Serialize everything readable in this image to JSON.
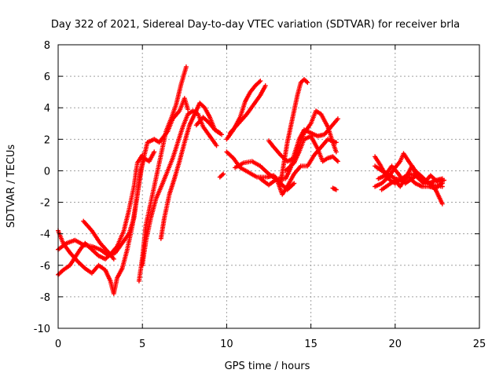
{
  "chart_data": {
    "type": "scatter",
    "title": "Day 322 of 2021, Sidereal Day-to-day VTEC variation (SDTVAR) for receiver brla",
    "xlabel": "GPS time / hours",
    "ylabel": "SDTVAR / TECUs",
    "xlim": [
      0,
      25
    ],
    "ylim": [
      -10,
      8
    ],
    "xticks": [
      0,
      5,
      10,
      15,
      20,
      25
    ],
    "yticks": [
      -10,
      -8,
      -6,
      -4,
      -2,
      0,
      2,
      4,
      6,
      8
    ],
    "grid": true,
    "legend": "none",
    "marker": "plus",
    "colors": {
      "series": "#ff0000",
      "grid": "#a0a0a0",
      "axis": "#000000"
    },
    "series": [
      {
        "points": [
          [
            0,
            -5.0
          ],
          [
            0.5,
            -4.6
          ],
          [
            1.0,
            -4.4
          ],
          [
            1.5,
            -4.7
          ],
          [
            2.0,
            -4.8
          ],
          [
            2.5,
            -5.0
          ],
          [
            3.0,
            -5.4
          ],
          [
            3.4,
            -5.2
          ],
          [
            3.8,
            -4.6
          ],
          [
            4.2,
            -4.0
          ],
          [
            4.5,
            -3.0
          ],
          [
            4.7,
            -1.5
          ],
          [
            4.9,
            0.0
          ],
          [
            5.1,
            0.8
          ],
          [
            5.4,
            0.6
          ],
          [
            5.7,
            1.2
          ]
        ]
      },
      {
        "points": [
          [
            0,
            -3.8
          ],
          [
            0.3,
            -4.6
          ],
          [
            0.7,
            -5.2
          ],
          [
            1.2,
            -5.8
          ],
          [
            1.6,
            -6.2
          ],
          [
            2.0,
            -6.5
          ],
          [
            2.4,
            -6.0
          ],
          [
            2.8,
            -6.3
          ],
          [
            3.1,
            -7.0
          ],
          [
            3.3,
            -7.8
          ],
          [
            3.5,
            -6.8
          ],
          [
            3.8,
            -6.2
          ],
          [
            4.1,
            -5.0
          ],
          [
            4.4,
            -3.5
          ],
          [
            4.7,
            -1.5
          ],
          [
            5.0,
            0.5
          ],
          [
            5.3,
            1.8
          ],
          [
            5.7,
            2.0
          ],
          [
            6.0,
            1.8
          ],
          [
            6.5,
            2.5
          ],
          [
            6.8,
            3.3
          ],
          [
            7.2,
            3.8
          ],
          [
            7.5,
            4.6
          ],
          [
            7.7,
            3.9
          ]
        ]
      },
      {
        "points": [
          [
            0,
            -6.6
          ],
          [
            0.3,
            -6.3
          ],
          [
            0.7,
            -6.0
          ],
          [
            1.0,
            -5.5
          ],
          [
            1.3,
            -5.0
          ],
          [
            1.6,
            -4.6
          ],
          [
            2.0,
            -5.0
          ],
          [
            2.4,
            -5.4
          ],
          [
            2.8,
            -5.6
          ],
          [
            3.1,
            -5.3
          ],
          [
            3.5,
            -4.8
          ],
          [
            3.9,
            -3.8
          ],
          [
            4.2,
            -2.5
          ],
          [
            4.5,
            -1.0
          ],
          [
            4.7,
            0.5
          ],
          [
            5.0,
            1.0
          ]
        ]
      },
      {
        "points": [
          [
            1.5,
            -3.2
          ],
          [
            2.0,
            -3.8
          ],
          [
            2.5,
            -4.6
          ],
          [
            3.0,
            -5.2
          ],
          [
            3.3,
            -5.6
          ]
        ]
      },
      {
        "points": [
          [
            4.8,
            -7.0
          ],
          [
            5.0,
            -5.5
          ],
          [
            5.2,
            -3.5
          ],
          [
            5.5,
            -2.0
          ],
          [
            5.8,
            -0.5
          ],
          [
            6.1,
            1.0
          ],
          [
            6.4,
            2.5
          ],
          [
            6.7,
            3.3
          ],
          [
            7.0,
            4.2
          ],
          [
            7.3,
            5.5
          ],
          [
            7.6,
            6.6
          ]
        ]
      },
      {
        "points": [
          [
            5.0,
            -6.0
          ],
          [
            5.2,
            -4.5
          ],
          [
            5.5,
            -3.0
          ],
          [
            5.8,
            -1.8
          ],
          [
            6.2,
            -0.8
          ],
          [
            6.5,
            0.0
          ],
          [
            6.8,
            0.8
          ],
          [
            7.1,
            1.8
          ],
          [
            7.4,
            2.8
          ],
          [
            7.7,
            3.6
          ],
          [
            8.0,
            3.8
          ],
          [
            8.3,
            3.6
          ],
          [
            8.6,
            2.8
          ],
          [
            9.0,
            2.2
          ],
          [
            9.4,
            1.6
          ]
        ]
      },
      {
        "points": [
          [
            6.1,
            -4.3
          ],
          [
            6.3,
            -3.0
          ],
          [
            6.6,
            -1.5
          ],
          [
            6.9,
            -0.5
          ],
          [
            7.2,
            0.6
          ],
          [
            7.5,
            1.8
          ],
          [
            7.8,
            2.9
          ],
          [
            8.1,
            3.6
          ],
          [
            8.4,
            4.3
          ],
          [
            8.7,
            4.0
          ],
          [
            9.0,
            3.4
          ],
          [
            9.3,
            2.6
          ],
          [
            9.6,
            2.4
          ]
        ]
      },
      {
        "points": [
          [
            8.2,
            2.9
          ],
          [
            8.6,
            3.4
          ],
          [
            9.0,
            3.0
          ],
          [
            9.3,
            2.6
          ],
          [
            9.7,
            2.3
          ]
        ]
      },
      {
        "points": [
          [
            9.6,
            -0.4
          ],
          [
            9.8,
            -0.2
          ]
        ]
      },
      {
        "points": [
          [
            10.0,
            2.0
          ],
          [
            10.4,
            2.6
          ],
          [
            10.8,
            3.4
          ],
          [
            11.1,
            4.4
          ],
          [
            11.4,
            5.0
          ],
          [
            11.7,
            5.4
          ],
          [
            12.0,
            5.7
          ]
        ]
      },
      {
        "points": [
          [
            10.0,
            1.2
          ],
          [
            10.4,
            0.8
          ],
          [
            10.8,
            0.2
          ],
          [
            11.3,
            -0.1
          ],
          [
            11.8,
            -0.4
          ],
          [
            12.4,
            -0.4
          ],
          [
            12.8,
            -0.3
          ],
          [
            13.2,
            -0.8
          ],
          [
            13.6,
            -1.2
          ],
          [
            14.0,
            -0.8
          ]
        ]
      },
      {
        "points": [
          [
            10.2,
            2.4
          ],
          [
            10.7,
            3.0
          ],
          [
            11.2,
            3.6
          ],
          [
            11.6,
            4.2
          ],
          [
            12.0,
            4.8
          ],
          [
            12.3,
            5.4
          ]
        ]
      },
      {
        "points": [
          [
            10.5,
            0.2
          ],
          [
            11.0,
            0.5
          ],
          [
            11.5,
            0.6
          ],
          [
            12.0,
            0.3
          ],
          [
            12.5,
            -0.2
          ],
          [
            13.0,
            -0.6
          ],
          [
            13.3,
            -1.5
          ],
          [
            13.6,
            -1.0
          ],
          [
            14.0,
            -0.2
          ],
          [
            14.4,
            0.3
          ],
          [
            14.8,
            0.3
          ],
          [
            15.2,
            1.0
          ],
          [
            15.6,
            1.5
          ],
          [
            16.0,
            2.0
          ],
          [
            16.5,
            1.8
          ]
        ]
      },
      {
        "points": [
          [
            12.5,
            1.9
          ],
          [
            12.8,
            1.5
          ],
          [
            13.2,
            1.0
          ],
          [
            13.6,
            0.6
          ],
          [
            14.0,
            0.8
          ],
          [
            14.3,
            1.6
          ],
          [
            14.6,
            2.4
          ],
          [
            15.0,
            3.0
          ],
          [
            15.3,
            3.8
          ],
          [
            15.6,
            3.6
          ],
          [
            16.0,
            2.8
          ],
          [
            16.3,
            1.8
          ],
          [
            16.5,
            1.2
          ]
        ]
      },
      {
        "points": [
          [
            12.0,
            -0.5
          ],
          [
            12.5,
            -0.9
          ],
          [
            13.0,
            -0.5
          ],
          [
            13.5,
            -0.5
          ],
          [
            13.8,
            0.2
          ],
          [
            14.0,
            1.0
          ],
          [
            14.3,
            2.0
          ],
          [
            14.6,
            2.6
          ],
          [
            15.0,
            2.4
          ],
          [
            15.4,
            2.2
          ],
          [
            15.8,
            2.3
          ],
          [
            16.2,
            2.8
          ],
          [
            16.6,
            3.3
          ]
        ]
      },
      {
        "points": [
          [
            13.2,
            -0.8
          ],
          [
            13.4,
            0.5
          ],
          [
            13.6,
            1.8
          ],
          [
            13.8,
            2.8
          ],
          [
            14.0,
            3.8
          ],
          [
            14.2,
            4.8
          ],
          [
            14.4,
            5.6
          ],
          [
            14.6,
            5.8
          ],
          [
            14.8,
            5.6
          ]
        ]
      },
      {
        "points": [
          [
            13.5,
            0.0
          ],
          [
            14.0,
            0.5
          ],
          [
            14.3,
            1.2
          ],
          [
            14.6,
            2.0
          ],
          [
            15.0,
            2.2
          ],
          [
            15.4,
            1.4
          ],
          [
            15.7,
            0.6
          ],
          [
            16.0,
            0.8
          ],
          [
            16.3,
            0.9
          ],
          [
            16.6,
            0.6
          ]
        ]
      },
      {
        "points": [
          [
            16.3,
            -1.1
          ],
          [
            16.5,
            -1.2
          ]
        ]
      },
      {
        "points": [
          [
            18.8,
            0.9
          ],
          [
            19.1,
            0.4
          ],
          [
            19.4,
            -0.2
          ],
          [
            19.7,
            -0.6
          ],
          [
            20.0,
            -0.8
          ],
          [
            20.4,
            -0.5
          ],
          [
            20.8,
            -0.2
          ],
          [
            21.2,
            -0.3
          ],
          [
            21.6,
            -0.6
          ],
          [
            22.0,
            -0.8
          ],
          [
            22.4,
            -1.2
          ],
          [
            22.8,
            -2.1
          ]
        ]
      },
      {
        "points": [
          [
            18.8,
            -1.0
          ],
          [
            19.2,
            -0.8
          ],
          [
            19.6,
            -0.4
          ],
          [
            20.0,
            0.2
          ],
          [
            20.3,
            0.6
          ],
          [
            20.5,
            1.1
          ],
          [
            20.8,
            0.6
          ],
          [
            21.2,
            0.0
          ],
          [
            21.6,
            -0.4
          ],
          [
            22.0,
            -0.8
          ],
          [
            22.4,
            -0.6
          ],
          [
            22.8,
            -0.5
          ]
        ]
      },
      {
        "points": [
          [
            18.8,
            0.3
          ],
          [
            19.2,
            0.0
          ],
          [
            19.6,
            -0.2
          ],
          [
            20.0,
            -0.5
          ],
          [
            20.4,
            -0.6
          ],
          [
            20.8,
            -0.4
          ],
          [
            21.2,
            -0.8
          ],
          [
            21.6,
            -1.0
          ],
          [
            22.0,
            -1.0
          ],
          [
            22.4,
            -1.1
          ],
          [
            22.8,
            -0.8
          ]
        ]
      },
      {
        "points": [
          [
            19.0,
            -0.5
          ],
          [
            19.4,
            -0.3
          ],
          [
            19.8,
            0.3
          ],
          [
            20.2,
            -0.2
          ],
          [
            20.6,
            -0.8
          ],
          [
            21.0,
            -0.5
          ],
          [
            21.4,
            -0.2
          ],
          [
            21.8,
            -0.6
          ],
          [
            22.2,
            -0.9
          ],
          [
            22.8,
            -1.0
          ]
        ]
      },
      {
        "points": [
          [
            19.2,
            -1.2
          ],
          [
            19.6,
            -0.9
          ],
          [
            20.0,
            -0.6
          ],
          [
            20.3,
            -1.0
          ],
          [
            20.7,
            -0.3
          ],
          [
            21.0,
            0.3
          ],
          [
            21.3,
            -0.4
          ],
          [
            21.7,
            -0.8
          ],
          [
            22.1,
            -0.3
          ],
          [
            22.5,
            -0.7
          ],
          [
            22.9,
            -0.6
          ]
        ]
      }
    ]
  }
}
